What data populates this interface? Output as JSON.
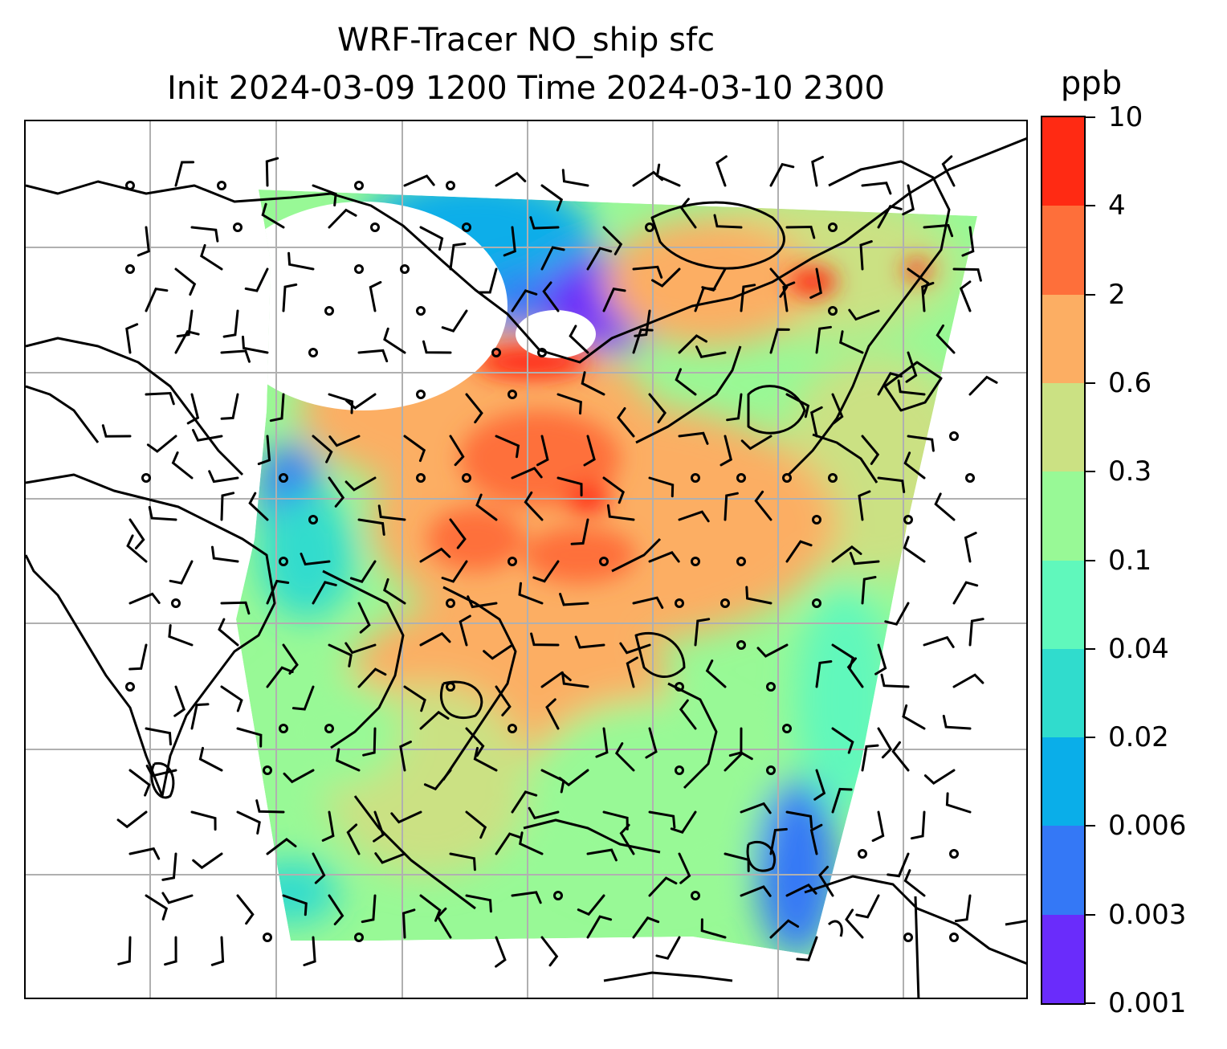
{
  "title": {
    "line1": "WRF-Tracer NO_ship sfc",
    "line2": "Init 2024-03-09 1200 Time 2024-03-10 2300"
  },
  "colorbar": {
    "unit": "ppb",
    "levels": [
      "0.001",
      "0.003",
      "0.006",
      "0.02",
      "0.04",
      "0.1",
      "0.3",
      "0.6",
      "2",
      "4",
      "10"
    ],
    "colors": [
      "#6a2cfb",
      "#3478f6",
      "#0aaee9",
      "#30dccd",
      "#60f8bc",
      "#98f996",
      "#cbe183",
      "#fcae63",
      "#fe6f3a",
      "#ff2a13"
    ]
  },
  "map": {
    "projection": "Lambert conformal",
    "region": "East Asia / Southeast Asia",
    "gridlines": true,
    "coastlines": true,
    "wind_barbs": true,
    "overlay_fields": [
      "NO_ship surface concentration",
      "wind barbs"
    ]
  }
}
